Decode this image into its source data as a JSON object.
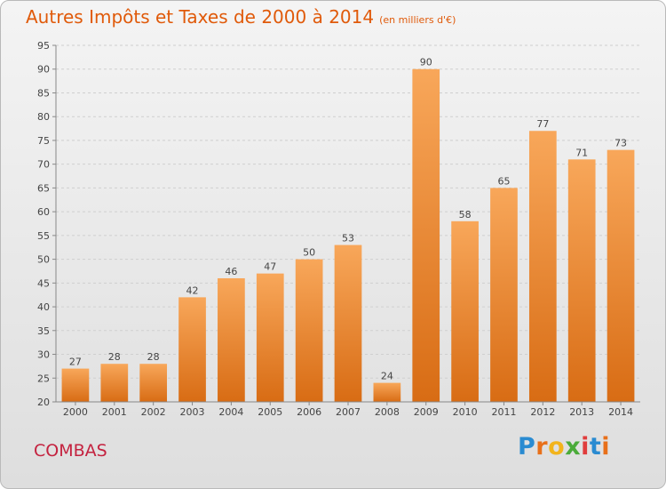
{
  "chart_data": {
    "type": "bar",
    "title": "Autres Impôts et Taxes de 2000 à 2014",
    "subtitle": "(en milliers d'€)",
    "categories": [
      "2000",
      "2001",
      "2002",
      "2003",
      "2004",
      "2005",
      "2006",
      "2007",
      "2008",
      "2009",
      "2010",
      "2011",
      "2012",
      "2013",
      "2014"
    ],
    "values": [
      27,
      28,
      28,
      42,
      46,
      47,
      50,
      53,
      24,
      90,
      58,
      65,
      77,
      71,
      73
    ],
    "ylim": [
      20,
      95
    ],
    "yticks": [
      20,
      25,
      30,
      35,
      40,
      45,
      50,
      55,
      60,
      65,
      70,
      75,
      80,
      85,
      90,
      95
    ],
    "grid": true,
    "bar_color": "#f0882e"
  },
  "commune": "COMBAS",
  "logo": {
    "text": "Proxiti",
    "letter_colors": [
      "#2a8bd1",
      "#e8701a",
      "#f2b41c",
      "#4bab3a",
      "#e03c3c",
      "#2a8bd1",
      "#e8701a"
    ]
  }
}
